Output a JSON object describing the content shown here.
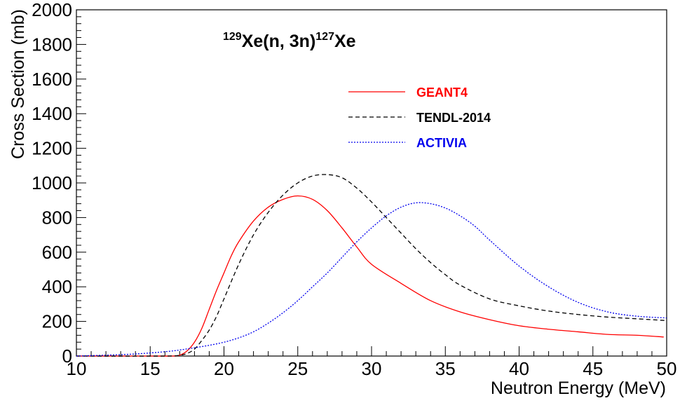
{
  "chart_data": {
    "type": "line",
    "title_parts": {
      "sup1": "129",
      "main": "Xe(n, 3n)",
      "sup2": "127",
      "tail": "Xe"
    },
    "xlabel": "Neutron Energy (MeV)",
    "ylabel": "Cross Section (mb)",
    "xlim": [
      10,
      50
    ],
    "ylim": [
      0,
      2000
    ],
    "x_ticks": [
      10,
      15,
      20,
      25,
      30,
      35,
      40,
      45,
      50
    ],
    "y_ticks": [
      0,
      200,
      400,
      600,
      800,
      1000,
      1200,
      1400,
      1600,
      1800,
      2000
    ],
    "grid": false,
    "legend_position": "top-right",
    "series": [
      {
        "name": "GEANT4",
        "color": "#ff0000",
        "style": "solid",
        "x": [
          10,
          15,
          16.5,
          17,
          17.5,
          18,
          18.5,
          19,
          19.5,
          20,
          20.5,
          21,
          22,
          23,
          24,
          25,
          26,
          27,
          28,
          29,
          30,
          32,
          34,
          36,
          38,
          40,
          42,
          44,
          46,
          48,
          49.8
        ],
        "y": [
          0,
          0,
          0,
          5,
          30,
          80,
          160,
          270,
          380,
          480,
          580,
          660,
          780,
          860,
          905,
          925,
          905,
          840,
          740,
          630,
          530,
          420,
          320,
          255,
          210,
          175,
          155,
          140,
          125,
          120,
          110
        ]
      },
      {
        "name": "TENDL-2014",
        "color": "#000000",
        "style": "dashed",
        "x": [
          10,
          16,
          17,
          17.5,
          18,
          18.5,
          19,
          19.5,
          20,
          21,
          22,
          23,
          24,
          25,
          26,
          27,
          28,
          29,
          30,
          31,
          32,
          33,
          34,
          35,
          36,
          38,
          40,
          42,
          44,
          46,
          48,
          50
        ],
        "y": [
          0,
          0,
          5,
          15,
          40,
          90,
          150,
          230,
          330,
          530,
          700,
          830,
          930,
          1000,
          1040,
          1048,
          1030,
          970,
          890,
          800,
          710,
          620,
          540,
          470,
          410,
          330,
          290,
          260,
          240,
          225,
          215,
          205
        ]
      },
      {
        "name": "ACTIVIA",
        "color": "#0000ee",
        "style": "dotted",
        "x": [
          10,
          12,
          14,
          16,
          17,
          18,
          19,
          20,
          21,
          22,
          23,
          24,
          25,
          26,
          27,
          28,
          29,
          30,
          31,
          32,
          33,
          34,
          35,
          36,
          37,
          38,
          40,
          42,
          44,
          46,
          48,
          50
        ],
        "y": [
          0,
          5,
          12,
          25,
          35,
          48,
          62,
          80,
          105,
          140,
          190,
          250,
          320,
          400,
          480,
          570,
          660,
          740,
          810,
          860,
          885,
          880,
          855,
          810,
          750,
          670,
          520,
          400,
          310,
          255,
          230,
          220
        ]
      }
    ]
  }
}
